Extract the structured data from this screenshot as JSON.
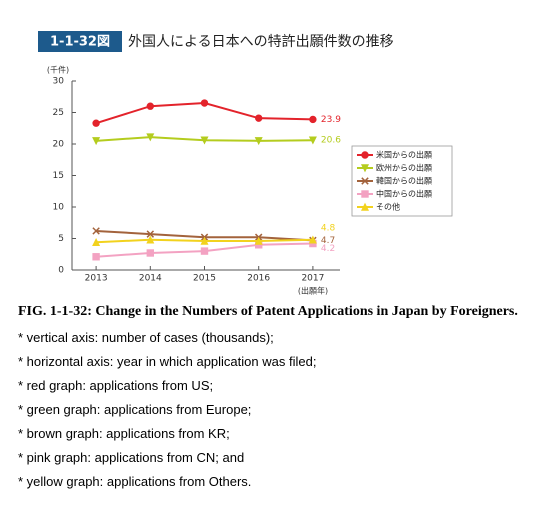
{
  "figure_label": "1-1-32図",
  "chart_data": {
    "type": "line",
    "title": "外国人による日本への特許出願件数の推移",
    "y_unit": "(千件)",
    "x_unit": "(出願年)",
    "categories": [
      "2013",
      "2014",
      "2015",
      "2016",
      "2017"
    ],
    "series": [
      {
        "name": "米国からの出願",
        "color": "#e3232b",
        "marker": "circle",
        "values": [
          23.3,
          26.0,
          26.5,
          24.1,
          23.9
        ]
      },
      {
        "name": "欧州からの出願",
        "color": "#b4cc1e",
        "marker": "triangle-down",
        "values": [
          20.5,
          21.1,
          20.6,
          20.5,
          20.6
        ]
      },
      {
        "name": "韓国からの出願",
        "color": "#a3633c",
        "marker": "x",
        "values": [
          6.2,
          5.7,
          5.2,
          5.2,
          4.7
        ]
      },
      {
        "name": "中国からの出願",
        "color": "#f3a2c2",
        "marker": "square",
        "values": [
          2.1,
          2.7,
          3.0,
          4.0,
          4.2
        ]
      },
      {
        "name": "その他",
        "color": "#f2d21e",
        "marker": "triangle",
        "values": [
          4.4,
          4.8,
          4.6,
          4.6,
          4.8
        ]
      }
    ],
    "ylim": [
      0,
      30
    ],
    "yticks": [
      0,
      5,
      10,
      15,
      20,
      25,
      30
    ],
    "legend": "right"
  },
  "caption": {
    "title": "FIG. 1-1-32: Change in the Numbers of Patent Applications in Japan by Foreigners.",
    "notes": [
      "* vertical axis: number of cases (thousands);",
      "* horizontal axis: year in which application was filed;",
      "* red graph: applications from US;",
      "* green graph: applications from Europe;",
      "* brown graph: applications from KR;",
      "* pink graph: applications from CN; and",
      "* yellow graph: applications from Others."
    ]
  }
}
